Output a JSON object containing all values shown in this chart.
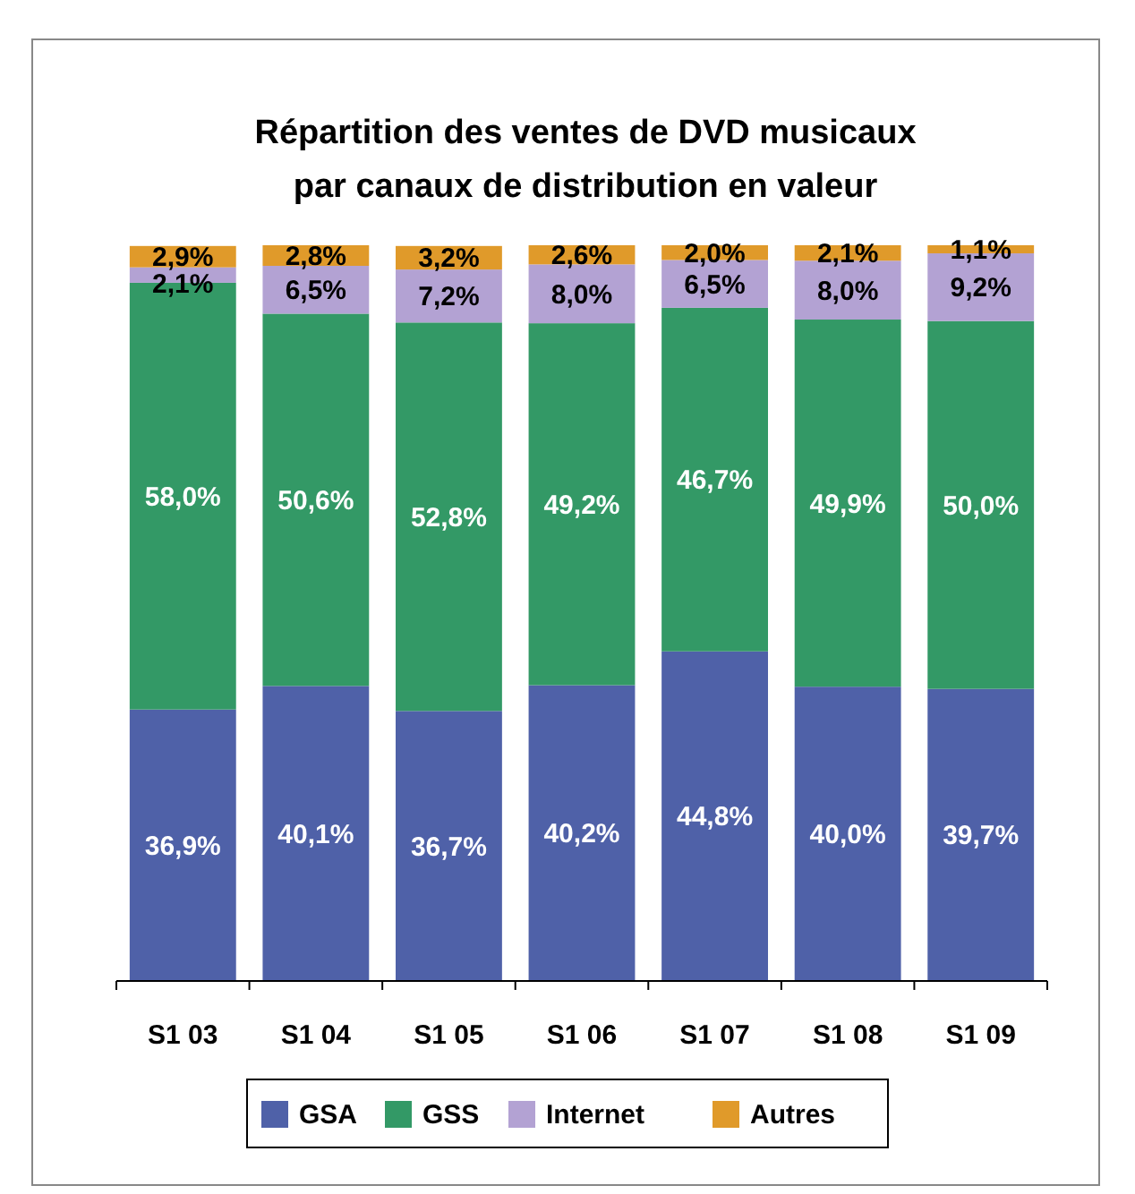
{
  "chart_data": {
    "type": "bar",
    "stacked": true,
    "title": "Répartition des ventes de DVD musicaux\npar canaux de distribution en valeur",
    "categories": [
      "S1 03",
      "S1 04",
      "S1 05",
      "S1 06",
      "S1 07",
      "S1 08",
      "S1 09"
    ],
    "legend": "bottom",
    "series": [
      {
        "name": "GSA",
        "color": "#4f61a8",
        "values": [
          36.9,
          40.1,
          36.7,
          40.2,
          44.8,
          40.0,
          39.7
        ],
        "value_labels": [
          "36,9%",
          "40,1%",
          "36,7%",
          "40,2%",
          "44,8%",
          "40,0%",
          "39,7%"
        ]
      },
      {
        "name": "GSS",
        "color": "#339966",
        "values": [
          58.0,
          50.6,
          52.8,
          49.2,
          46.7,
          49.9,
          50.0
        ],
        "value_labels": [
          "58,0%",
          "50,6%",
          "52,8%",
          "49,2%",
          "46,7%",
          "49,9%",
          "50,0%"
        ]
      },
      {
        "name": "Internet",
        "color": "#b3a2d3",
        "values": [
          2.1,
          6.5,
          7.2,
          8.0,
          6.5,
          8.0,
          9.2
        ],
        "value_labels": [
          "2,1%",
          "6,5%",
          "7,2%",
          "8,0%",
          "6,5%",
          "8,0%",
          "9,2%"
        ]
      },
      {
        "name": "Autres",
        "color": "#e09a2a",
        "values": [
          2.9,
          2.8,
          3.2,
          2.6,
          2.0,
          2.1,
          1.1
        ],
        "value_labels": [
          "2,9%",
          "2,8%",
          "3,2%",
          "2,6%",
          "2,0%",
          "2,1%",
          "1,1%"
        ]
      }
    ]
  }
}
